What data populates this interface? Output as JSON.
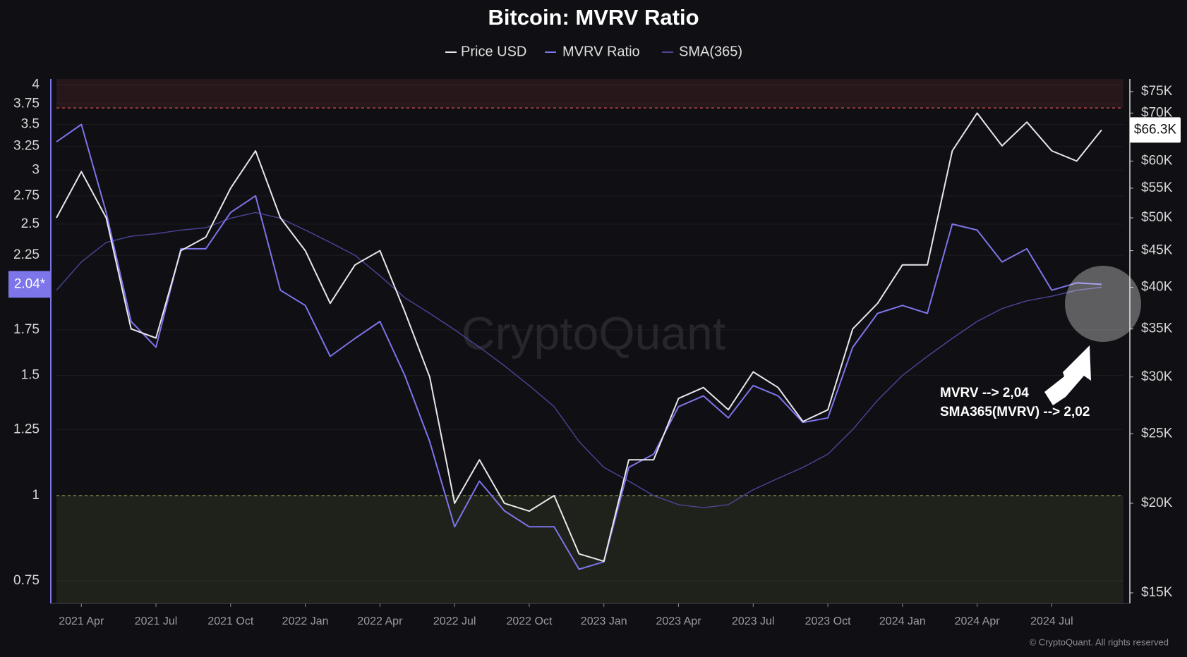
{
  "chart_data": {
    "type": "line",
    "title": "Bitcoin: MVRV Ratio",
    "x": [
      "2021 Mar",
      "2021 Apr",
      "2021 May",
      "2021 Jun",
      "2021 Jul",
      "2021 Aug",
      "2021 Sep",
      "2021 Oct",
      "2021 Nov",
      "2021 Dec",
      "2022 Jan",
      "2022 Feb",
      "2022 Mar",
      "2022 Apr",
      "2022 May",
      "2022 Jun",
      "2022 Jul",
      "2022 Aug",
      "2022 Sep",
      "2022 Oct",
      "2022 Nov",
      "2022 Dec",
      "2023 Jan",
      "2023 Feb",
      "2023 Mar",
      "2023 Apr",
      "2023 May",
      "2023 Jun",
      "2023 Jul",
      "2023 Aug",
      "2023 Sep",
      "2023 Oct",
      "2023 Nov",
      "2023 Dec",
      "2024 Jan",
      "2024 Feb",
      "2024 Mar",
      "2024 Apr",
      "2024 May",
      "2024 Jun",
      "2024 Jul",
      "2024 Aug",
      "2024 Sep"
    ],
    "xticks": [
      "2021 Apr",
      "2021 Jul",
      "2021 Oct",
      "2022 Jan",
      "2022 Apr",
      "2022 Jul",
      "2022 Oct",
      "2023 Jan",
      "2023 Apr",
      "2023 Jul",
      "2023 Oct",
      "2024 Jan",
      "2024 Apr",
      "2024 Jul"
    ],
    "series": [
      {
        "name": "Price USD",
        "color": "#e8e8ec",
        "axis": "y2",
        "end_label": "$66.3K",
        "values": [
          50000,
          58000,
          50000,
          35000,
          34000,
          45000,
          47000,
          55000,
          62000,
          50000,
          45000,
          38000,
          43000,
          45000,
          37000,
          30000,
          20000,
          23000,
          20000,
          19500,
          20500,
          17000,
          16600,
          23000,
          23000,
          28000,
          29000,
          27000,
          30500,
          29000,
          26000,
          27000,
          35000,
          38000,
          43000,
          43000,
          62000,
          70000,
          63000,
          68000,
          62000,
          60000,
          66300
        ]
      },
      {
        "name": "MVRV Ratio",
        "color": "#7d75ea",
        "end_label": "2.04*",
        "values": [
          3.3,
          3.5,
          2.6,
          1.8,
          1.65,
          2.3,
          2.3,
          2.6,
          2.75,
          2.0,
          1.9,
          1.6,
          1.7,
          1.8,
          1.5,
          1.2,
          0.9,
          1.05,
          0.95,
          0.9,
          0.9,
          0.78,
          0.8,
          1.1,
          1.15,
          1.35,
          1.4,
          1.3,
          1.45,
          1.4,
          1.28,
          1.3,
          1.65,
          1.85,
          1.9,
          1.85,
          2.5,
          2.45,
          2.2,
          2.3,
          2.0,
          2.05,
          2.04
        ]
      },
      {
        "name": "SMA(365)",
        "color": "#4c4699",
        "values": [
          2.0,
          2.2,
          2.35,
          2.4,
          2.42,
          2.45,
          2.47,
          2.55,
          2.6,
          2.55,
          2.45,
          2.35,
          2.25,
          2.1,
          1.95,
          1.85,
          1.75,
          1.65,
          1.55,
          1.45,
          1.35,
          1.2,
          1.1,
          1.05,
          1.0,
          0.97,
          0.96,
          0.97,
          1.02,
          1.06,
          1.1,
          1.15,
          1.25,
          1.38,
          1.5,
          1.6,
          1.7,
          1.8,
          1.88,
          1.93,
          1.96,
          2.0,
          2.02
        ]
      }
    ],
    "yscale": "log",
    "ylim": [
      0.695,
      4.08
    ],
    "yticks": [
      0.75,
      1,
      1.25,
      1.5,
      1.75,
      2.25,
      2.5,
      2.75,
      3,
      3.25,
      3.5,
      3.75,
      4
    ],
    "y2scale": "log",
    "y2lim": [
      14500,
      78100
    ],
    "y2ticks": [
      {
        "value": 15000,
        "label": "$15K"
      },
      {
        "value": 20000,
        "label": "$20K"
      },
      {
        "value": 25000,
        "label": "$25K"
      },
      {
        "value": 30000,
        "label": "$30K"
      },
      {
        "value": 35000,
        "label": "$35K"
      },
      {
        "value": 40000,
        "label": "$40K"
      },
      {
        "value": 45000,
        "label": "$45K"
      },
      {
        "value": 50000,
        "label": "$50K"
      },
      {
        "value": 55000,
        "label": "$55K"
      },
      {
        "value": 60000,
        "label": "$60K"
      },
      {
        "value": 70000,
        "label": "$70K"
      },
      {
        "value": 75000,
        "label": "$75K"
      }
    ],
    "grid": true,
    "reference_lines": [
      {
        "value": 3.7,
        "color": "#d9534f",
        "side": "above"
      },
      {
        "value": 1,
        "color": "#8fae4a",
        "side": "below"
      }
    ],
    "annotations": [
      "MVRV --> 2,04",
      "SMA365(MVRV) --> 2,02"
    ],
    "watermark": "CryptoQuant",
    "footer": "© CryptoQuant. All rights reserved"
  }
}
